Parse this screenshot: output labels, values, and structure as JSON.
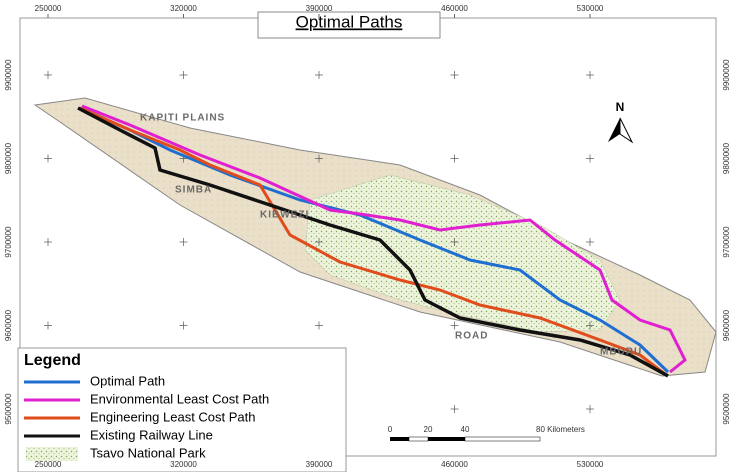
{
  "title": "Optimal Paths",
  "x_labels": [
    250000,
    320000,
    390000,
    460000,
    530000
  ],
  "y_labels": [
    9900000,
    9800000,
    9700000,
    9600000,
    9500000
  ],
  "north": "N",
  "place_labels": [
    "KAPITI PLAINS",
    "SIMBA",
    "KIBWEZI",
    "ROAD",
    "MBURU"
  ],
  "legend": {
    "title": "Legend",
    "items": [
      "Optimal Path",
      "Environmental Least Cost Path",
      "Engineering Least Cost Path",
      "Existing Railway Line",
      "Tsavo National Park"
    ]
  },
  "scale_bar": {
    "ticks": [
      0,
      20,
      40
    ],
    "end": "80 Kilometers"
  }
}
